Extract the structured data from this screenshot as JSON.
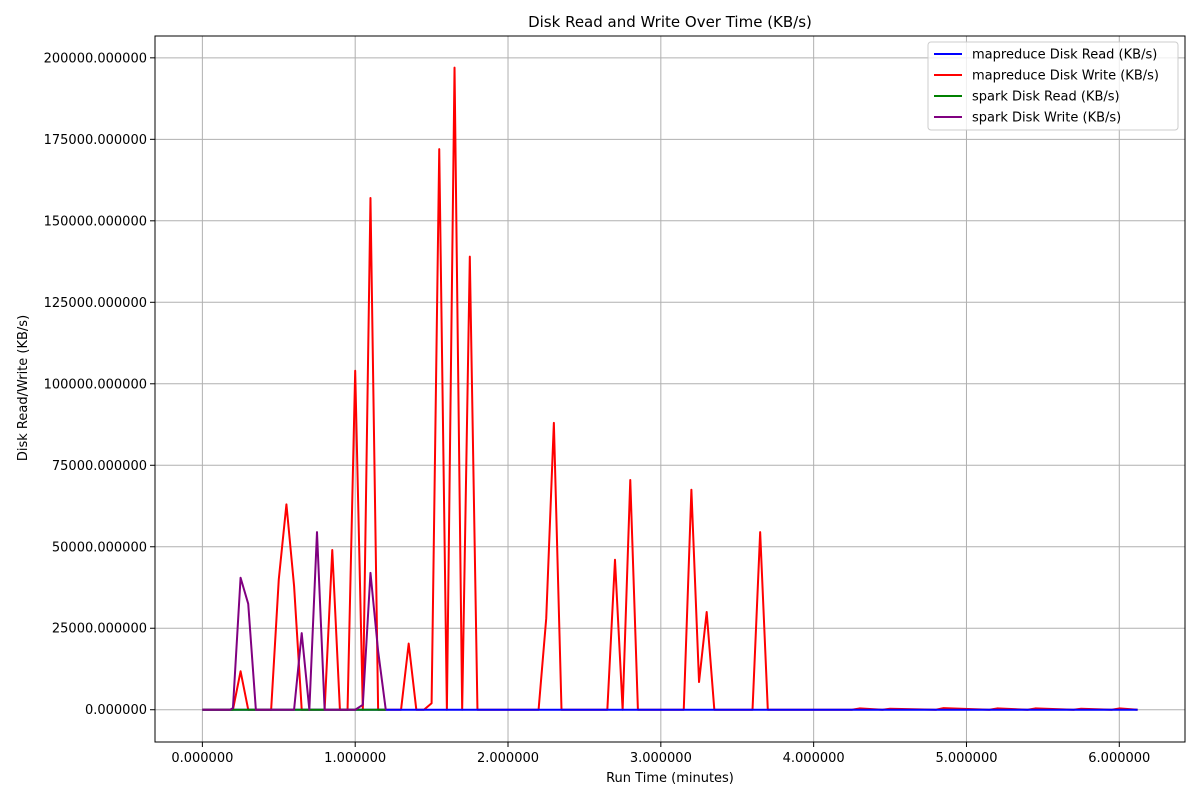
{
  "chart_data": {
    "type": "line",
    "title": "Disk Read and Write Over Time (KB/s)",
    "xlabel": "Run Time (minutes)",
    "ylabel": "Disk Read/Write (KB/s)",
    "xlim": [
      -0.31,
      6.43
    ],
    "ylim": [
      -9900,
      206700
    ],
    "x_ticks": [
      0,
      1,
      2,
      3,
      4,
      5,
      6
    ],
    "x_tick_labels": [
      "0.000000",
      "1.000000",
      "2.000000",
      "3.000000",
      "4.000000",
      "5.000000",
      "6.000000"
    ],
    "y_ticks": [
      0,
      25000,
      50000,
      75000,
      100000,
      125000,
      150000,
      175000,
      200000
    ],
    "y_tick_labels": [
      "0.000000",
      "25000.000000",
      "50000.000000",
      "75000.000000",
      "100000.000000",
      "125000.000000",
      "150000.000000",
      "175000.000000",
      "200000.000000"
    ],
    "grid": true,
    "legend_position": "top-right",
    "series": [
      {
        "name": "mapreduce Disk Read (KB/s)",
        "color": "#0000ff",
        "x": [
          0,
          6.12
        ],
        "y": [
          0,
          0
        ]
      },
      {
        "name": "mapreduce Disk Write (KB/s)",
        "color": "#ff0000",
        "x": [
          0,
          0.2,
          0.25,
          0.3,
          0.45,
          0.5,
          0.55,
          0.6,
          0.65,
          0.8,
          0.85,
          0.9,
          0.95,
          1.0,
          1.05,
          1.1,
          1.15,
          1.2,
          1.3,
          1.35,
          1.4,
          1.45,
          1.5,
          1.55,
          1.6,
          1.65,
          1.7,
          1.75,
          1.8,
          2.2,
          2.25,
          2.3,
          2.35,
          2.65,
          2.7,
          2.75,
          2.8,
          2.85,
          3.15,
          3.2,
          3.25,
          3.3,
          3.35,
          3.6,
          3.65,
          3.7,
          4.25,
          4.3,
          4.45,
          4.5,
          4.8,
          4.85,
          5.15,
          5.2,
          5.4,
          5.45,
          5.7,
          5.75,
          5.95,
          6.0,
          6.12
        ],
        "y": [
          0,
          0,
          11800,
          0,
          0,
          40000,
          63000,
          38000,
          0,
          0,
          49000,
          0,
          0,
          104000,
          0,
          157000,
          0,
          0,
          0,
          20300,
          0,
          0,
          2000,
          172000,
          0,
          197000,
          0,
          139000,
          0,
          0,
          28000,
          88000,
          0,
          0,
          46000,
          0,
          70500,
          0,
          0,
          67500,
          8500,
          30000,
          0,
          0,
          54500,
          0,
          0,
          400,
          0,
          300,
          0,
          500,
          0,
          400,
          0,
          400,
          0,
          300,
          0,
          400,
          0
        ]
      },
      {
        "name": "spark Disk Read (KB/s)",
        "color": "#008000",
        "x": [
          0,
          0.2,
          0.25,
          0.3,
          1.2
        ],
        "y": [
          0,
          0,
          0,
          0,
          0
        ]
      },
      {
        "name": "spark Disk Write (KB/s)",
        "color": "#800080",
        "x": [
          0,
          0.18,
          0.2,
          0.25,
          0.3,
          0.35,
          0.6,
          0.65,
          0.7,
          0.75,
          0.8,
          1.0,
          1.05,
          1.1,
          1.15,
          1.2
        ],
        "y": [
          0,
          0,
          500,
          40500,
          32500,
          0,
          0,
          23500,
          0,
          54500,
          0,
          0,
          1500,
          42000,
          18000,
          0
        ]
      }
    ]
  }
}
